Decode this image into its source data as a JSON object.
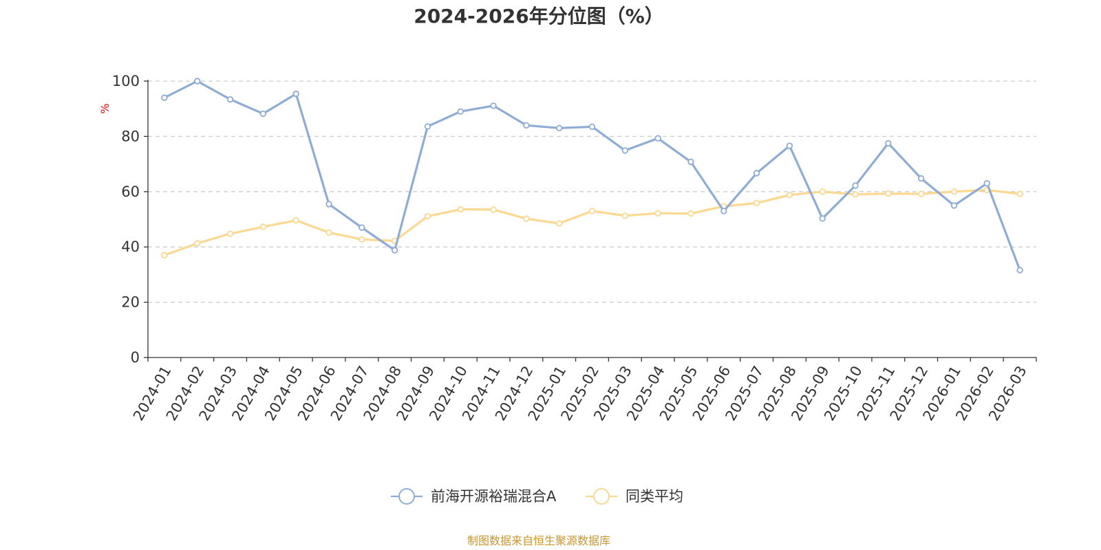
{
  "chart_data": {
    "type": "line",
    "title": "2024-2026年分位图（%）",
    "ylabel": "%",
    "xlabel": "",
    "ylim": [
      0,
      100
    ],
    "yticks": [
      0,
      20,
      40,
      60,
      80,
      100
    ],
    "grid": true,
    "legend_position": "bottom",
    "categories": [
      "2024-01",
      "2024-02",
      "2024-03",
      "2024-04",
      "2024-05",
      "2024-06",
      "2024-07",
      "2024-08",
      "2024-09",
      "2024-10",
      "2024-11",
      "2024-12",
      "2025-01",
      "2025-02",
      "2025-03",
      "2025-04",
      "2025-05",
      "2025-06",
      "2025-07",
      "2025-08",
      "2025-09",
      "2025-10",
      "2025-11",
      "2025-12",
      "2026-01",
      "2026-02",
      "2026-03"
    ],
    "series": [
      {
        "name": "前海开源裕瑞混合A",
        "color": "#8eacd8",
        "values": [
          94,
          100,
          93.4,
          88.2,
          95.4,
          55.5,
          47,
          38.8,
          83.6,
          89,
          91.1,
          84,
          83,
          83.5,
          74.9,
          79.3,
          70.8,
          53,
          66.7,
          76.6,
          50.3,
          62.2,
          77.5,
          64.8,
          55,
          63,
          31.6
        ]
      },
      {
        "name": "同类平均",
        "color": "#fcd890",
        "values": [
          37,
          41.3,
          44.8,
          47.3,
          49.6,
          45.2,
          42.7,
          42.2,
          51.1,
          53.6,
          53.5,
          50.2,
          48.5,
          53,
          51.3,
          52.2,
          52.1,
          54.7,
          55.9,
          58.8,
          60,
          59,
          59.3,
          59.2,
          60,
          60.6,
          59.2
        ]
      }
    ]
  },
  "source_text": "制图数据来自恒生聚源数据库",
  "colors": {
    "axis": "#333333",
    "grid": "#cccccc",
    "yunit": "#ff0000",
    "source": "#c9962c"
  }
}
